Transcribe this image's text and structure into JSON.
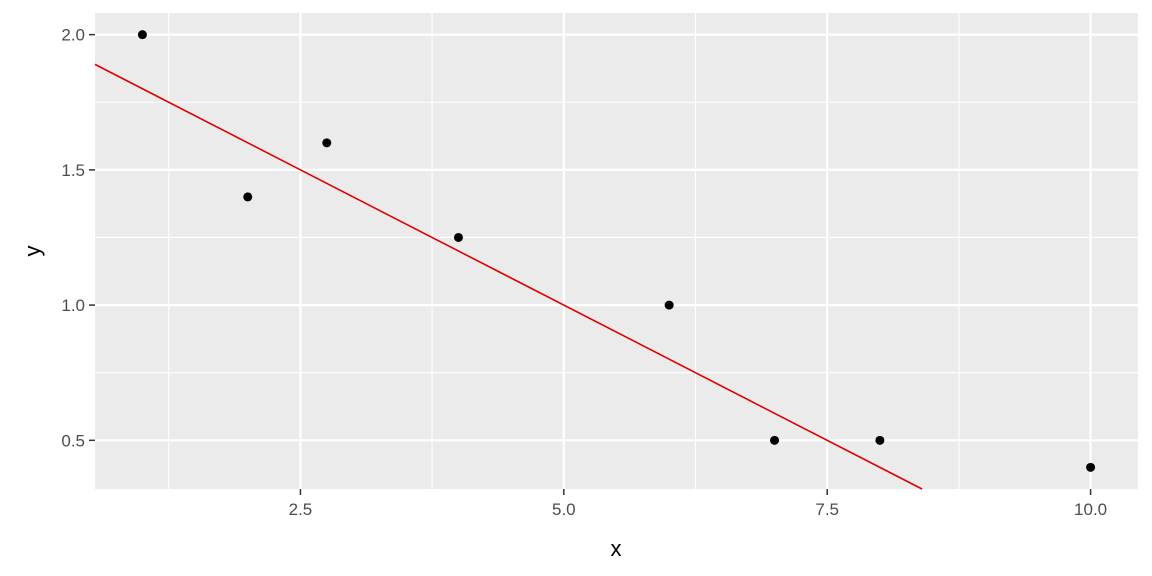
{
  "chart_data": {
    "type": "scatter",
    "xlabel": "x",
    "ylabel": "y",
    "xlim": [
      0.55,
      10.45
    ],
    "ylim": [
      0.32,
      2.08
    ],
    "x_ticks": [
      {
        "value": 2.5,
        "label": "2.5"
      },
      {
        "value": 5.0,
        "label": "5.0"
      },
      {
        "value": 7.5,
        "label": "7.5"
      },
      {
        "value": 10.0,
        "label": "10.0"
      }
    ],
    "y_ticks": [
      {
        "value": 0.5,
        "label": "0.5"
      },
      {
        "value": 1.0,
        "label": "1.0"
      },
      {
        "value": 1.5,
        "label": "1.5"
      },
      {
        "value": 2.0,
        "label": "2.0"
      }
    ],
    "points": [
      {
        "x": 1,
        "y": 2.0
      },
      {
        "x": 2,
        "y": 1.4
      },
      {
        "x": 2.75,
        "y": 1.6
      },
      {
        "x": 4,
        "y": 1.25
      },
      {
        "x": 6,
        "y": 1.0
      },
      {
        "x": 7,
        "y": 0.5
      },
      {
        "x": 8,
        "y": 0.5
      },
      {
        "x": 10,
        "y": 0.4
      }
    ],
    "fit_line": {
      "intercept": 2.0,
      "slope": -0.2,
      "color": "#e00000"
    },
    "grid": true,
    "panel_background": "#ebebeb",
    "grid_color": "#ffffff",
    "point_color": "#000000"
  }
}
